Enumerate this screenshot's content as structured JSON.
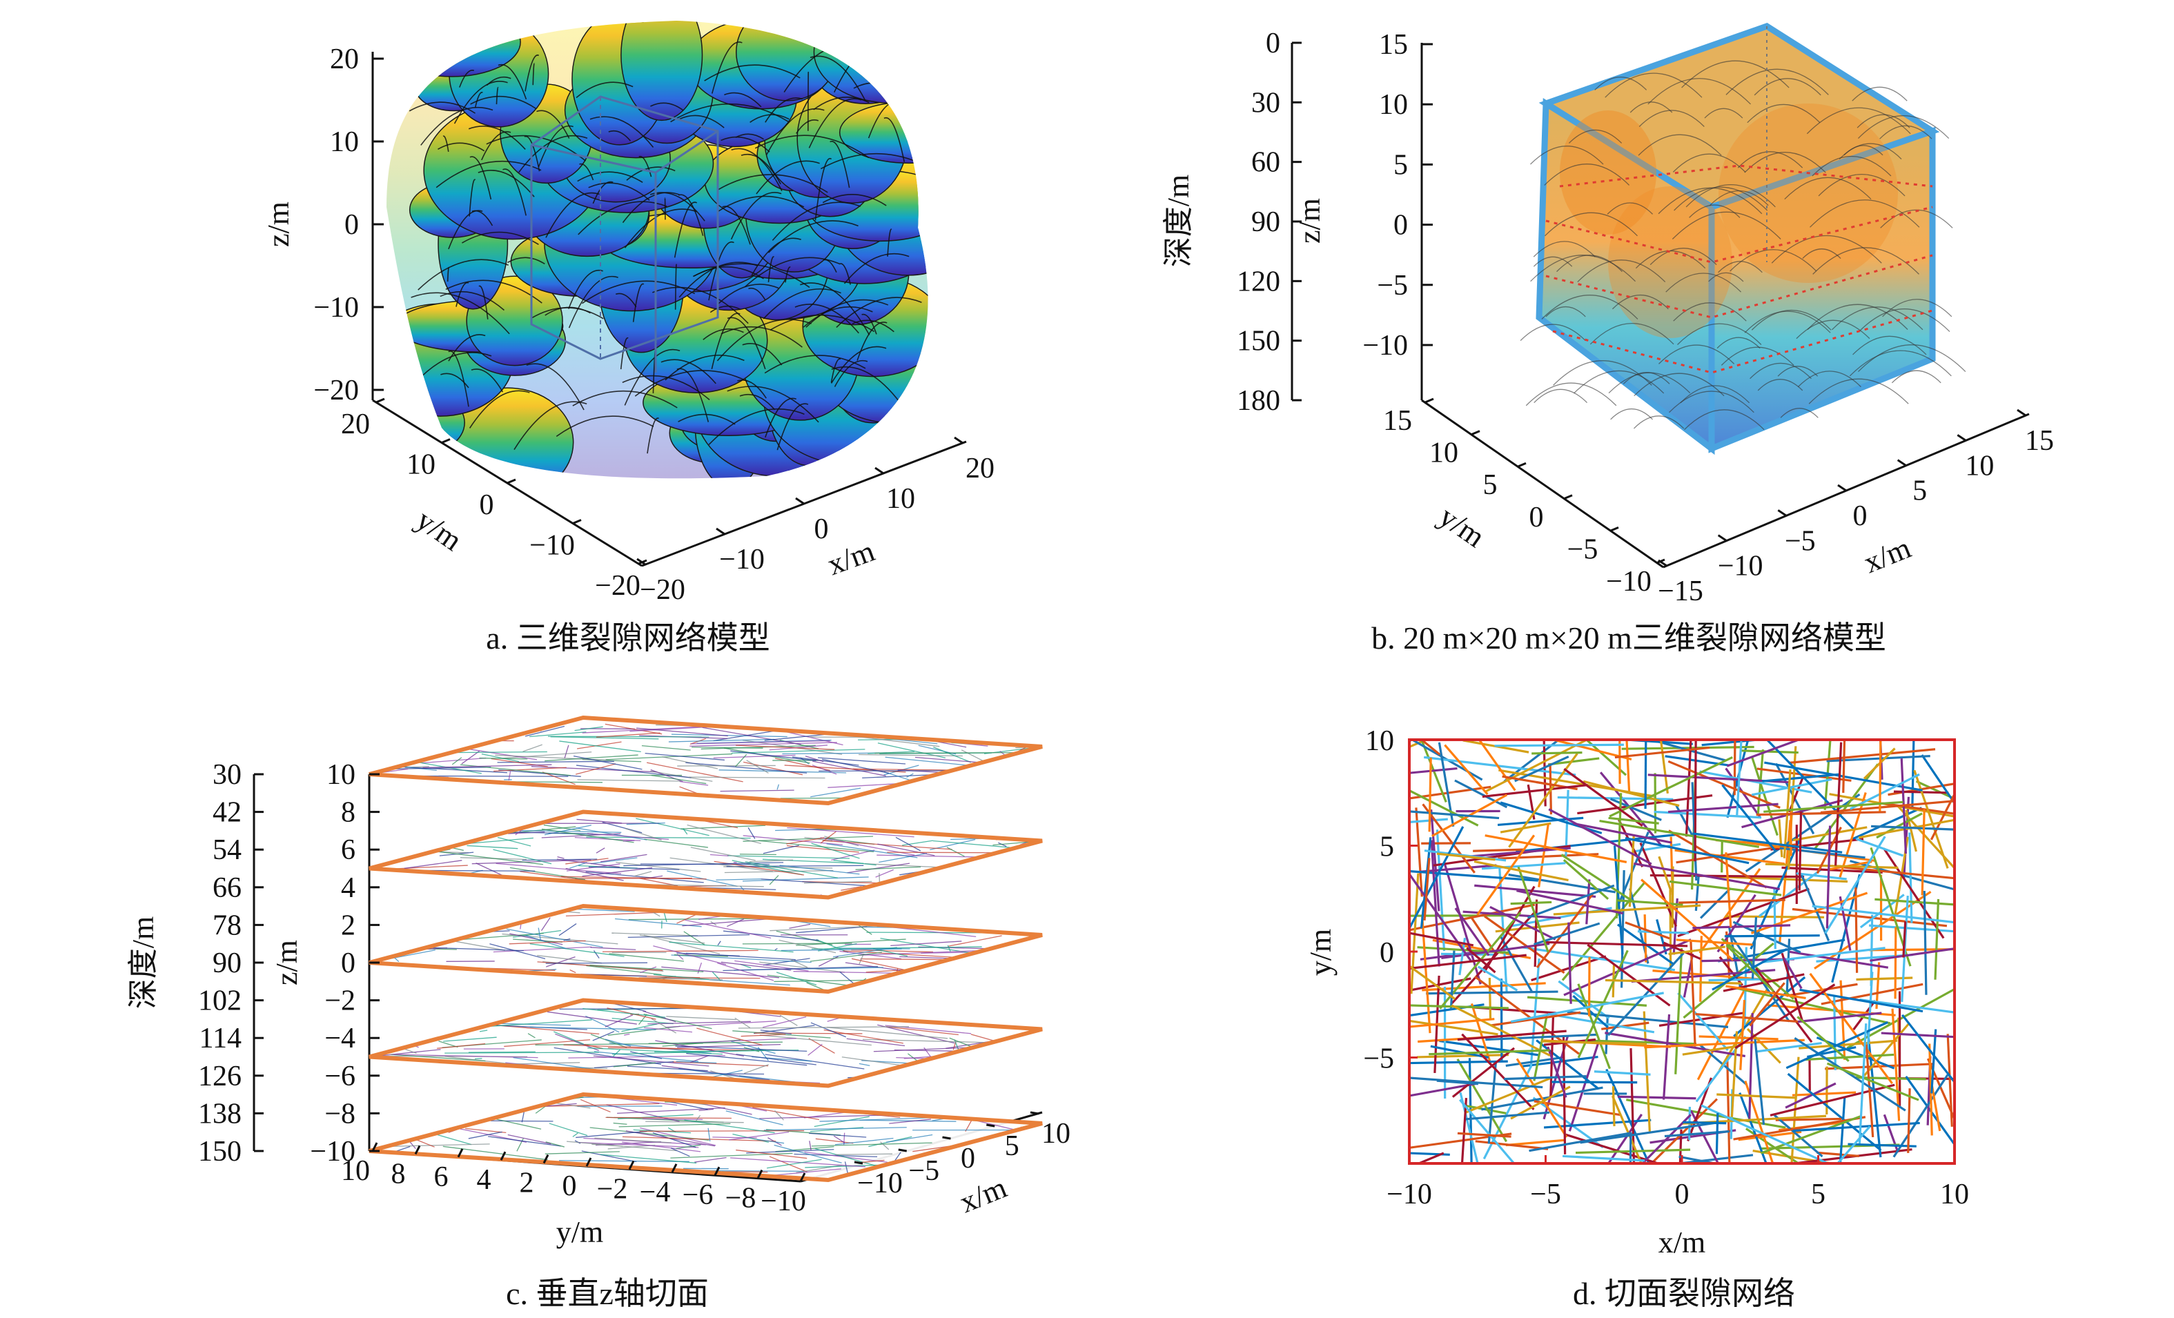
{
  "chart_data": [
    {
      "type": "3d-surface",
      "id": "a",
      "caption": "a. 三维裂隙网络模型",
      "xlabel": "x/m",
      "ylabel": "y/m",
      "zlabel": "z/m",
      "xlim": [
        -20,
        20
      ],
      "ylim": [
        -20,
        20
      ],
      "zlim": [
        -20,
        20
      ],
      "xticks": [
        -20,
        -10,
        0,
        10,
        20
      ],
      "yticks": [
        -20,
        -10,
        0,
        10,
        20
      ],
      "zticks": [
        -20,
        -10,
        0,
        10,
        20
      ],
      "colormap": [
        "#3e26a8",
        "#2d6bdf",
        "#12a6c7",
        "#3fbc73",
        "#a8c13a",
        "#f5c42c",
        "#f9e528"
      ],
      "inner_box_half_size": 10
    },
    {
      "type": "3d-surface",
      "id": "b",
      "caption": "b. 20 m×20 m×20 m三维裂隙网络模型",
      "xlabel": "x/m",
      "ylabel": "y/m",
      "zlabel": "z/m",
      "depth_label": "深度/m",
      "xlim": [
        -15,
        15
      ],
      "ylim": [
        -10,
        15
      ],
      "zlim": [
        -10,
        15
      ],
      "xticks": [
        -15,
        -10,
        -5,
        0,
        5,
        10,
        15
      ],
      "yticks": [
        -10,
        -5,
        0,
        5,
        10,
        15
      ],
      "zticks": [
        -10,
        -5,
        0,
        5,
        10,
        15
      ],
      "depth_ticks": [
        0,
        30,
        60,
        90,
        120,
        150,
        180
      ],
      "box_color": "#4aa3df",
      "box_face_color": "#f2a33a",
      "slice_line_color": "#e03c31"
    },
    {
      "type": "3d-slices",
      "id": "c",
      "caption": "c. 垂直z轴切面",
      "xlabel": "x/m",
      "ylabel": "y/m",
      "zlabel": "z/m",
      "depth_label": "深度/m",
      "zticks": [
        -10,
        -8,
        -6,
        -4,
        -2,
        0,
        2,
        4,
        6,
        8,
        10
      ],
      "depth_ticks": [
        30,
        42,
        54,
        66,
        78,
        90,
        102,
        114,
        126,
        138,
        150
      ],
      "yticks": [
        10,
        8,
        6,
        4,
        2,
        0,
        -2,
        -4,
        -6,
        -8,
        -10
      ],
      "xticks": [
        -10,
        -5,
        0,
        5,
        10
      ],
      "slice_levels": [
        -10,
        -5,
        0,
        5,
        10
      ],
      "slice_edge_color": "#e8803a",
      "fracture_colors": [
        "#1f3a93",
        "#6a2c91",
        "#2e8b57",
        "#c0392b",
        "#2980b9",
        "#8e44ad",
        "#16a085",
        "#7f8c8d"
      ]
    },
    {
      "type": "lines",
      "id": "d",
      "caption": "d. 切面裂隙网络",
      "xlabel": "x/m",
      "ylabel": "y/m",
      "xlim": [
        -10,
        10
      ],
      "ylim": [
        -10,
        10
      ],
      "xticks": [
        -10,
        -5,
        0,
        5,
        10
      ],
      "yticks": [
        -5,
        0,
        5,
        10
      ],
      "frame_color": "#d62728",
      "line_colors": [
        "#1f77b4",
        "#ff7f0e",
        "#d4a017",
        "#7e2f8e",
        "#77ac30",
        "#4dbeee",
        "#a2142f",
        "#0072bd",
        "#d95319"
      ],
      "segment_count": 520
    }
  ]
}
